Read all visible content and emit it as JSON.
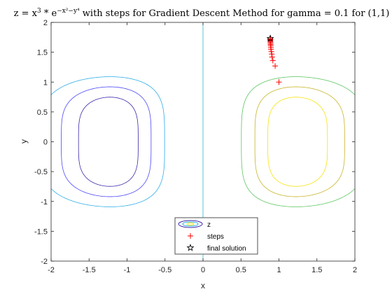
{
  "chart_data": {
    "type": "line",
    "title": "z = x³ * e^{−x²−y⁴} with steps for Gradient Descent Method for gamma = 0.1 for (1,1)",
    "title_parts": {
      "pre": "z = x",
      "pow1": "3",
      "mid": " * e",
      "pow2": "−x²−y⁴",
      "post": " with steps for Gradient Descent Method for gamma = 0.1 for (1,1)"
    },
    "xlabel": "x",
    "ylabel": "y",
    "xlim": [
      -2,
      2
    ],
    "ylim": [
      -2,
      2
    ],
    "xticks": [
      -2,
      -1.5,
      -1,
      -0.5,
      0,
      0.5,
      1,
      1.5,
      2
    ],
    "yticks": [
      -2,
      -1.5,
      -1,
      -0.5,
      0,
      0.5,
      1,
      1.5,
      2
    ],
    "xtick_labels": [
      "-2",
      "-1.5",
      "-1",
      "-0.5",
      "0",
      "0.5",
      "1",
      "1.5",
      "2"
    ],
    "ytick_labels": [
      "-2",
      "-1.5",
      "-1",
      "-0.5",
      "0",
      "0.5",
      "1",
      "1.5",
      "2"
    ],
    "grid": false,
    "contour": {
      "function": "x^3 * exp(-x^2 - y^4)",
      "levels": [
        -0.3,
        -0.2,
        -0.1,
        0,
        0.1,
        0.2,
        0.3
      ],
      "colors": [
        "#3d26a8",
        "#4a47f5",
        "#2bace8",
        "#33b7c9",
        "#5bc55f",
        "#c8b42a",
        "#f6e20e"
      ]
    },
    "series": [
      {
        "name": "steps",
        "marker": "+",
        "color": "#ff0000",
        "points": [
          [
            1.0,
            1.0
          ],
          [
            0.95,
            1.27
          ],
          [
            0.92,
            1.36
          ],
          [
            0.91,
            1.42
          ],
          [
            0.905,
            1.47
          ],
          [
            0.9,
            1.51
          ],
          [
            0.895,
            1.55
          ],
          [
            0.893,
            1.58
          ],
          [
            0.891,
            1.61
          ],
          [
            0.89,
            1.63
          ],
          [
            0.889,
            1.65
          ],
          [
            0.888,
            1.67
          ],
          [
            0.887,
            1.685
          ],
          [
            0.886,
            1.7
          ],
          [
            0.886,
            1.71
          ],
          [
            0.886,
            1.718
          ],
          [
            0.886,
            1.724
          ]
        ]
      },
      {
        "name": "final solution",
        "marker": "star",
        "color": "#000000",
        "points": [
          [
            0.886,
            1.73
          ]
        ]
      }
    ],
    "legend": {
      "placement": "bottom-center",
      "entries": [
        "z",
        "steps",
        "final solution"
      ]
    }
  }
}
